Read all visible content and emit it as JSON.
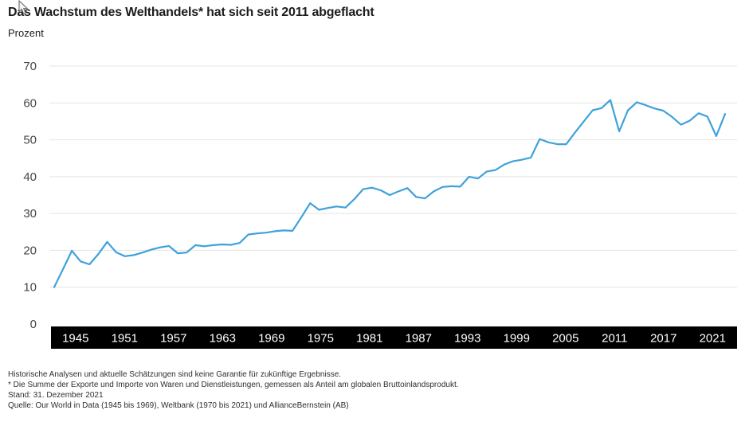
{
  "page": {
    "title": "Das Wachstum des Welthandels* hat sich seit 2011 abgeflacht",
    "subtitle": "Prozent"
  },
  "chart_data": {
    "type": "line",
    "title": "Das Wachstum des Welthandels* hat sich seit 2011 abgeflacht",
    "ylabel": "Prozent",
    "ylim": [
      0,
      70
    ],
    "y_ticks": [
      0,
      10,
      20,
      30,
      40,
      50,
      60,
      70
    ],
    "x_tick_labels": [
      "1945",
      "1951",
      "1957",
      "1963",
      "1969",
      "1975",
      "1981",
      "1987",
      "1993",
      "1999",
      "2005",
      "2011",
      "2017",
      "2021"
    ],
    "grid": "horizontal",
    "legend": "none",
    "line_color": "#3ea2da",
    "axis_band_color": "#000000",
    "years": [
      1945,
      1946,
      1947,
      1948,
      1949,
      1950,
      1951,
      1952,
      1953,
      1954,
      1955,
      1956,
      1957,
      1958,
      1959,
      1960,
      1961,
      1962,
      1963,
      1964,
      1965,
      1966,
      1967,
      1968,
      1969,
      1970,
      1971,
      1972,
      1973,
      1974,
      1975,
      1976,
      1977,
      1978,
      1979,
      1980,
      1981,
      1982,
      1983,
      1984,
      1985,
      1986,
      1987,
      1988,
      1989,
      1990,
      1991,
      1992,
      1993,
      1994,
      1995,
      1996,
      1997,
      1998,
      1999,
      2000,
      2001,
      2002,
      2003,
      2004,
      2005,
      2006,
      2007,
      2008,
      2009,
      2010,
      2011,
      2012,
      2013,
      2014,
      2015,
      2016,
      2017,
      2018,
      2019,
      2020,
      2021
    ],
    "values": [
      10.0,
      14.9,
      19.9,
      17.0,
      16.2,
      19.0,
      22.3,
      19.5,
      18.4,
      18.7,
      19.4,
      20.2,
      20.8,
      21.2,
      19.2,
      19.4,
      21.4,
      21.1,
      21.4,
      21.6,
      21.5,
      22.0,
      24.3,
      24.6,
      24.8,
      25.2,
      25.4,
      25.3,
      29.0,
      32.8,
      31.0,
      31.5,
      31.9,
      31.6,
      33.9,
      36.6,
      37.0,
      36.3,
      35.0,
      36.0,
      36.9,
      34.5,
      34.1,
      36.0,
      37.2,
      37.4,
      37.3,
      40.0,
      39.5,
      41.4,
      41.8,
      43.3,
      44.2,
      44.6,
      45.2,
      50.2,
      49.3,
      48.8,
      48.8,
      52.0,
      55.0,
      58.0,
      58.6,
      60.8,
      52.3,
      58.0,
      60.2,
      59.4,
      58.5,
      57.9,
      56.2,
      54.1,
      55.2,
      57.2,
      56.3,
      51.0,
      57.0
    ]
  },
  "footer": {
    "line1": "Historische Analysen und aktuelle Schätzungen sind keine Garantie für zukünftige Ergebnisse.",
    "line2": "* Die Summe der Exporte und Importe von Waren und Dienstleistungen, gemessen als Anteil am globalen Bruttoinlandsprodukt.",
    "line3": "Stand: 31. Dezember 2021",
    "line4": "Quelle: Our World in Data (1945 bis 1969), Weltbank (1970 bis 2021) und AllianceBernstein (AB)"
  }
}
